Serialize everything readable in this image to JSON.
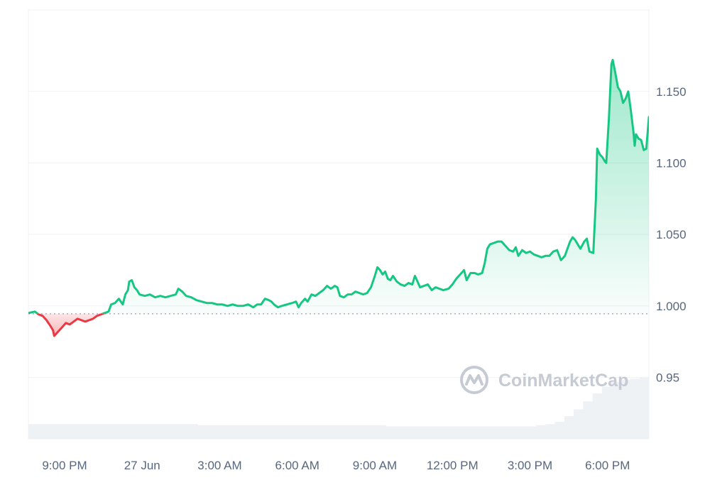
{
  "chart_data": {
    "type": "area",
    "baseline": 0.9945,
    "ylim": [
      0.907,
      1.207
    ],
    "y_ticks": [
      0.95,
      1.0,
      1.05,
      1.1,
      1.15
    ],
    "y_tick_labels": [
      "0.95",
      "1.000",
      "1.050",
      "1.100",
      "1.150"
    ],
    "x_ticks": [
      {
        "x": 1.4,
        "label": "9:00 PM"
      },
      {
        "x": 4.4,
        "label": "27 Jun"
      },
      {
        "x": 7.4,
        "label": "3:00 AM"
      },
      {
        "x": 10.4,
        "label": "6:00 AM"
      },
      {
        "x": 13.4,
        "label": "9:00 AM"
      },
      {
        "x": 16.4,
        "label": "12:00 PM"
      },
      {
        "x": 19.4,
        "label": "3:00 PM"
      },
      {
        "x": 22.4,
        "label": "6:00 PM"
      }
    ],
    "xlim": [
      0,
      24
    ],
    "series": [
      {
        "points": [
          [
            0.0,
            0.995
          ],
          [
            0.25,
            0.996
          ],
          [
            0.4,
            0.994
          ],
          [
            0.55,
            0.993
          ],
          [
            0.7,
            0.99
          ],
          [
            0.85,
            0.986
          ],
          [
            0.95,
            0.983
          ],
          [
            1.0,
            0.979
          ],
          [
            1.15,
            0.982
          ],
          [
            1.3,
            0.985
          ],
          [
            1.45,
            0.988
          ],
          [
            1.6,
            0.987
          ],
          [
            1.75,
            0.989
          ],
          [
            1.9,
            0.991
          ],
          [
            2.05,
            0.99
          ],
          [
            2.2,
            0.989
          ],
          [
            2.35,
            0.99
          ],
          [
            2.5,
            0.991
          ],
          [
            2.65,
            0.993
          ],
          [
            2.8,
            0.994
          ],
          [
            2.95,
            0.995
          ],
          [
            3.1,
            0.996
          ],
          [
            3.2,
            1.001
          ],
          [
            3.35,
            1.002
          ],
          [
            3.5,
            1.005
          ],
          [
            3.65,
            1.001
          ],
          [
            3.75,
            1.008
          ],
          [
            3.85,
            1.011
          ],
          [
            3.9,
            1.017
          ],
          [
            4.0,
            1.018
          ],
          [
            4.1,
            1.013
          ],
          [
            4.2,
            1.011
          ],
          [
            4.3,
            1.008
          ],
          [
            4.5,
            1.007
          ],
          [
            4.7,
            1.008
          ],
          [
            4.9,
            1.006
          ],
          [
            5.1,
            1.007
          ],
          [
            5.3,
            1.006
          ],
          [
            5.5,
            1.007
          ],
          [
            5.7,
            1.008
          ],
          [
            5.8,
            1.012
          ],
          [
            5.95,
            1.01
          ],
          [
            6.1,
            1.007
          ],
          [
            6.3,
            1.006
          ],
          [
            6.5,
            1.004
          ],
          [
            6.7,
            1.003
          ],
          [
            6.9,
            1.002
          ],
          [
            7.1,
            1.002
          ],
          [
            7.3,
            1.001
          ],
          [
            7.5,
            1.001
          ],
          [
            7.7,
            1.0
          ],
          [
            7.9,
            1.001
          ],
          [
            8.1,
            1.0
          ],
          [
            8.3,
            1.0
          ],
          [
            8.5,
            1.001
          ],
          [
            8.7,
            0.999
          ],
          [
            8.85,
            1.001
          ],
          [
            9.0,
            1.001
          ],
          [
            9.15,
            1.005
          ],
          [
            9.3,
            1.004
          ],
          [
            9.4,
            1.003
          ],
          [
            9.5,
            1.001
          ],
          [
            9.65,
            0.999
          ],
          [
            9.8,
            1.0
          ],
          [
            10.0,
            1.001
          ],
          [
            10.2,
            1.002
          ],
          [
            10.35,
            1.003
          ],
          [
            10.45,
            0.999
          ],
          [
            10.55,
            1.002
          ],
          [
            10.7,
            1.005
          ],
          [
            10.8,
            1.003
          ],
          [
            10.95,
            1.008
          ],
          [
            11.1,
            1.007
          ],
          [
            11.25,
            1.009
          ],
          [
            11.4,
            1.011
          ],
          [
            11.55,
            1.014
          ],
          [
            11.7,
            1.012
          ],
          [
            11.85,
            1.014
          ],
          [
            11.95,
            1.013
          ],
          [
            12.05,
            1.007
          ],
          [
            12.2,
            1.006
          ],
          [
            12.35,
            1.008
          ],
          [
            12.5,
            1.008
          ],
          [
            12.65,
            1.01
          ],
          [
            12.8,
            1.009
          ],
          [
            12.95,
            1.008
          ],
          [
            13.1,
            1.009
          ],
          [
            13.25,
            1.013
          ],
          [
            13.4,
            1.021
          ],
          [
            13.5,
            1.027
          ],
          [
            13.6,
            1.025
          ],
          [
            13.7,
            1.022
          ],
          [
            13.8,
            1.024
          ],
          [
            13.9,
            1.019
          ],
          [
            14.0,
            1.018
          ],
          [
            14.1,
            1.021
          ],
          [
            14.25,
            1.017
          ],
          [
            14.4,
            1.015
          ],
          [
            14.55,
            1.014
          ],
          [
            14.7,
            1.016
          ],
          [
            14.85,
            1.015
          ],
          [
            14.95,
            1.021
          ],
          [
            15.05,
            1.017
          ],
          [
            15.15,
            1.013
          ],
          [
            15.3,
            1.014
          ],
          [
            15.45,
            1.015
          ],
          [
            15.6,
            1.011
          ],
          [
            15.75,
            1.013
          ],
          [
            15.9,
            1.012
          ],
          [
            16.05,
            1.011
          ],
          [
            16.25,
            1.012
          ],
          [
            16.4,
            1.015
          ],
          [
            16.55,
            1.019
          ],
          [
            16.7,
            1.022
          ],
          [
            16.85,
            1.025
          ],
          [
            16.95,
            1.018
          ],
          [
            17.1,
            1.023
          ],
          [
            17.25,
            1.023
          ],
          [
            17.4,
            1.022
          ],
          [
            17.55,
            1.023
          ],
          [
            17.65,
            1.03
          ],
          [
            17.75,
            1.04
          ],
          [
            17.85,
            1.043
          ],
          [
            18.0,
            1.044
          ],
          [
            18.15,
            1.045
          ],
          [
            18.3,
            1.045
          ],
          [
            18.45,
            1.042
          ],
          [
            18.6,
            1.039
          ],
          [
            18.75,
            1.038
          ],
          [
            18.85,
            1.041
          ],
          [
            18.95,
            1.035
          ],
          [
            19.1,
            1.039
          ],
          [
            19.25,
            1.037
          ],
          [
            19.4,
            1.038
          ],
          [
            19.55,
            1.036
          ],
          [
            19.7,
            1.035
          ],
          [
            19.85,
            1.034
          ],
          [
            20.0,
            1.035
          ],
          [
            20.15,
            1.035
          ],
          [
            20.3,
            1.038
          ],
          [
            20.45,
            1.039
          ],
          [
            20.6,
            1.032
          ],
          [
            20.75,
            1.035
          ],
          [
            20.85,
            1.04
          ],
          [
            20.95,
            1.045
          ],
          [
            21.05,
            1.048
          ],
          [
            21.15,
            1.046
          ],
          [
            21.25,
            1.043
          ],
          [
            21.35,
            1.04
          ],
          [
            21.5,
            1.045
          ],
          [
            21.6,
            1.047
          ],
          [
            21.7,
            1.038
          ],
          [
            21.85,
            1.037
          ],
          [
            21.95,
            1.075
          ],
          [
            22.0,
            1.11
          ],
          [
            22.1,
            1.106
          ],
          [
            22.2,
            1.104
          ],
          [
            22.3,
            1.101
          ],
          [
            22.35,
            1.1
          ],
          [
            22.45,
            1.13
          ],
          [
            22.55,
            1.169
          ],
          [
            22.6,
            1.172
          ],
          [
            22.7,
            1.163
          ],
          [
            22.8,
            1.153
          ],
          [
            22.9,
            1.15
          ],
          [
            23.0,
            1.142
          ],
          [
            23.1,
            1.145
          ],
          [
            23.2,
            1.15
          ],
          [
            23.3,
            1.137
          ],
          [
            23.4,
            1.122
          ],
          [
            23.45,
            1.112
          ],
          [
            23.5,
            1.12
          ],
          [
            23.6,
            1.117
          ],
          [
            23.7,
            1.116
          ],
          [
            23.8,
            1.109
          ],
          [
            23.9,
            1.11
          ],
          [
            24.0,
            1.132
          ],
          [
            24.05,
            1.133
          ]
        ]
      }
    ],
    "colors": {
      "up_line": "#16c784",
      "down_line": "#ea3943",
      "baseline": "#a6b0c3",
      "grid": "#eff2f5",
      "text": "#58667e",
      "volume": "#eff2f5"
    },
    "volume": [
      0.13,
      0.13,
      0.13,
      0.13,
      0.13,
      0.13,
      0.13,
      0.13,
      0.13,
      0.13,
      0.13,
      0.13,
      0.13,
      0.13,
      0.13,
      0.13,
      0.13,
      0.13,
      0.12,
      0.12,
      0.12,
      0.12,
      0.12,
      0.12,
      0.12,
      0.12,
      0.12,
      0.12,
      0.12,
      0.12,
      0.12,
      0.12,
      0.12,
      0.12,
      0.12,
      0.12,
      0.12,
      0.12,
      0.11,
      0.11,
      0.11,
      0.11,
      0.11,
      0.11,
      0.11,
      0.11,
      0.11,
      0.11,
      0.11,
      0.11,
      0.11,
      0.11,
      0.11,
      0.11,
      0.12,
      0.13,
      0.15,
      0.2,
      0.26,
      0.33,
      0.4,
      0.46,
      0.5,
      0.52,
      0.53,
      0.54
    ],
    "grid": "horizontal"
  },
  "watermark": {
    "text": "CoinMarketCap",
    "icon": "coinmarketcap-logo-icon"
  }
}
